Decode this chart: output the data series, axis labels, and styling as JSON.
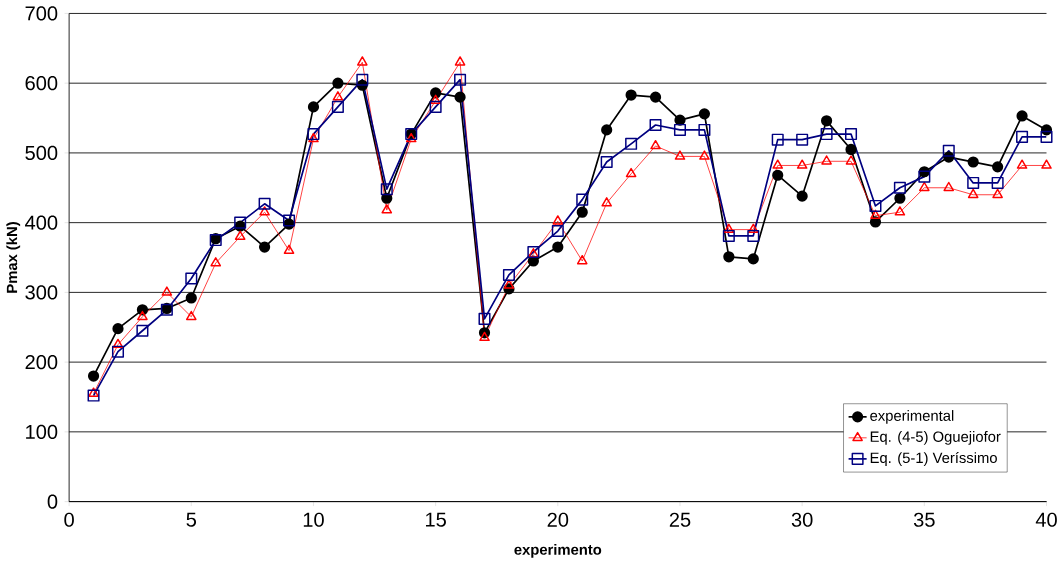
{
  "chart_data": {
    "type": "line",
    "xlabel": "experimento",
    "ylabel": "Pmax (kN)",
    "x": [
      1,
      2,
      3,
      4,
      5,
      6,
      7,
      8,
      9,
      10,
      11,
      12,
      13,
      14,
      15,
      16,
      17,
      18,
      19,
      20,
      21,
      22,
      23,
      24,
      25,
      26,
      27,
      28,
      29,
      30,
      31,
      32,
      33,
      34,
      35,
      36,
      37,
      38,
      39,
      40
    ],
    "xlim": [
      0,
      40
    ],
    "xticks": [
      0,
      5,
      10,
      15,
      20,
      25,
      30,
      35,
      40
    ],
    "ylim": [
      0,
      700
    ],
    "yticks": [
      0,
      100,
      200,
      300,
      400,
      500,
      600,
      700
    ],
    "grid": "y",
    "legend": "bottom right",
    "line_style": "solid",
    "series": [
      {
        "name": "experimental",
        "color": "#000000",
        "marker": "circle",
        "values": [
          180,
          248,
          275,
          277,
          292,
          377,
          395,
          365,
          398,
          566,
          600,
          597,
          435,
          527,
          586,
          580,
          242,
          305,
          345,
          365,
          415,
          533,
          583,
          580,
          547,
          556,
          351,
          348,
          468,
          438,
          546,
          505,
          401,
          435,
          473,
          494,
          487,
          480,
          553,
          533
        ]
      },
      {
        "name": "Eq. (4-5) Oguejiofor",
        "color": "#ff0000",
        "marker": "triangle",
        "values": [
          155,
          225,
          265,
          300,
          265,
          342,
          380,
          415,
          360,
          520,
          580,
          630,
          418,
          520,
          575,
          630,
          235,
          310,
          355,
          402,
          345,
          428,
          470,
          510,
          495,
          495,
          390,
          390,
          482,
          482,
          488,
          488,
          410,
          415,
          450,
          450,
          440,
          440,
          482,
          482
        ]
      },
      {
        "name": "Eq. (5-1) Veríssimo",
        "color": "#000080",
        "marker": "square",
        "values": [
          152,
          215,
          245,
          275,
          320,
          375,
          400,
          427,
          403,
          527,
          566,
          605,
          448,
          527,
          566,
          605,
          262,
          325,
          358,
          388,
          433,
          487,
          513,
          540,
          533,
          533,
          381,
          381,
          519,
          519,
          527,
          527,
          424,
          450,
          466,
          503,
          457,
          457,
          523,
          523
        ]
      }
    ]
  }
}
